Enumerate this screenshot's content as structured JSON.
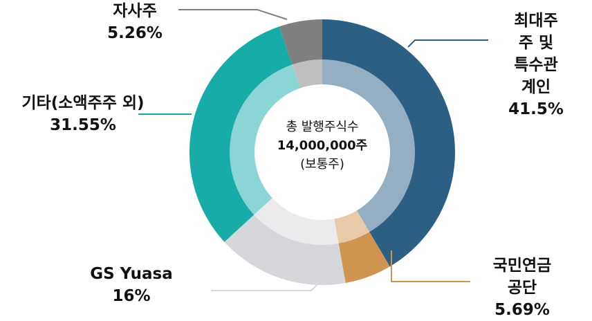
{
  "chart_data": {
    "type": "donut",
    "categories": [
      "최대주주 및\n특수관계인",
      "국민연금공단",
      "GS Yuasa",
      "기타(소액주주 외)",
      "자사주"
    ],
    "values": [
      41.5,
      5.69,
      16,
      31.55,
      5.26
    ],
    "value_labels": [
      "41.5%",
      "5.69%",
      "16%",
      "31.55%",
      "5.26%"
    ],
    "colors": [
      "#2b5f84",
      "#cf9550",
      "#d6d7db",
      "#17aca8",
      "#7f7f7f"
    ],
    "annotations": [
      "총 발행주식수",
      "14,000,000주",
      "(보통주)"
    ]
  }
}
